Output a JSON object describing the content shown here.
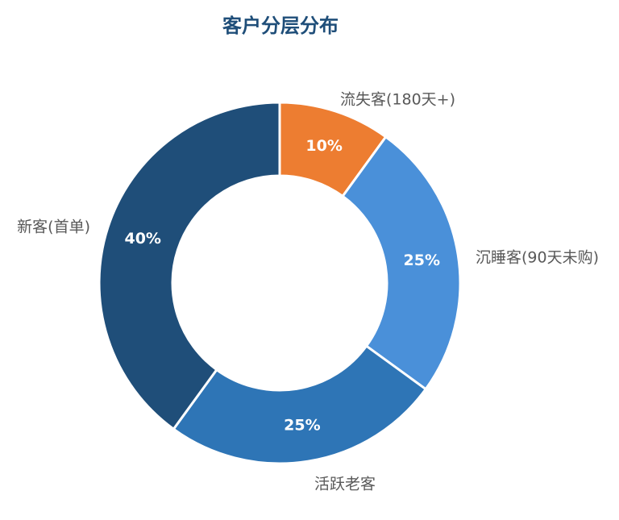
{
  "chart_data": {
    "type": "pie",
    "title": "客户分层分布",
    "categories": [
      "流失客(180天+)",
      "沉睡客(90天未购)",
      "活跃老客",
      "新客(首单)"
    ],
    "values": [
      10,
      25,
      25,
      40
    ],
    "value_labels": [
      "10%",
      "25%",
      "25%",
      "40%"
    ],
    "colors": [
      "#ed7d31",
      "#4a90d9",
      "#2e75b6",
      "#1f4e79"
    ],
    "donut": true,
    "legend": "none",
    "start_angle": "12 o'clock, clockwise"
  }
}
